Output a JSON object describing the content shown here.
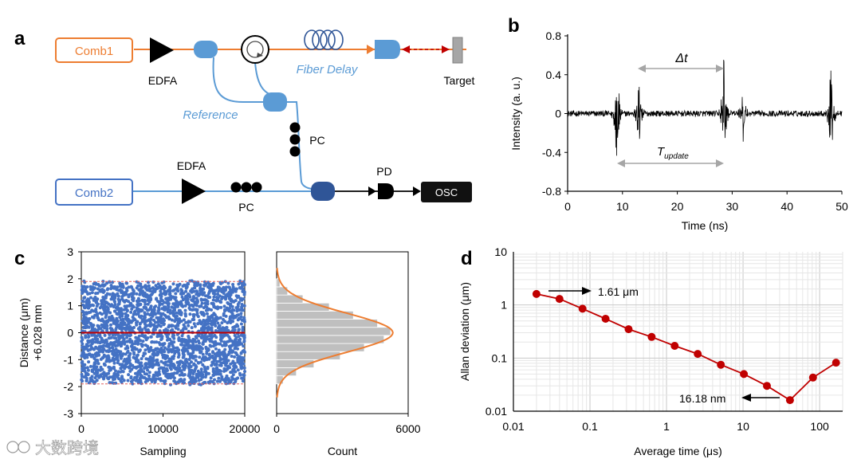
{
  "panels": {
    "a": {
      "label": "a",
      "comb1": "Comb1",
      "comb2": "Comb2",
      "edfa_top": "EDFA",
      "edfa_bottom": "EDFA",
      "fiber_delay": "Fiber Delay",
      "reference": "Reference",
      "target": "Target",
      "pc_right": "PC",
      "pc_bottom": "PC",
      "pd": "PD",
      "osc": "OSC"
    },
    "b": {
      "label": "b",
      "delta_t": "Δt",
      "t_update_main": "T",
      "t_update_sub": "update"
    },
    "c": {
      "label": "c"
    },
    "d": {
      "label": "d",
      "annot_top": "1.61 μm",
      "annot_bottom": "16.18 nm"
    }
  },
  "watermark": "大数跨境",
  "colors": {
    "comb1": "#ed7d31",
    "comb2": "#4472c4",
    "fiber_blue": "#5b9bd5",
    "allan_red": "#c00000",
    "scatter_blue": "#4472c4"
  },
  "chart_data": [
    {
      "id": "b",
      "type": "line",
      "xlabel": "Time (ns)",
      "ylabel": "Intensity (a. u.)",
      "xlim": [
        0,
        50
      ],
      "ylim": [
        -0.8,
        0.8
      ],
      "xticks": [
        "0",
        "10",
        "20",
        "30",
        "40",
        "50"
      ],
      "yticks": [
        "0.8",
        "0.4",
        "0",
        "-0.4",
        "-0.8"
      ],
      "pulses": [
        {
          "t": 9,
          "amp": 0.7
        },
        {
          "t": 13,
          "amp": 0.45
        },
        {
          "t": 28.5,
          "amp": 0.72
        },
        {
          "t": 32,
          "amp": 0.32
        },
        {
          "t": 48,
          "amp": 0.7
        }
      ],
      "noise_amp": 0.03
    },
    {
      "id": "c-scatter",
      "type": "scatter",
      "xlabel": "Sampling",
      "ylabel": "Distance (μm)",
      "ylabel2": "+6.028 mm",
      "xlim": [
        0,
        20000
      ],
      "ylim": [
        -3,
        3
      ],
      "xticks": [
        "0",
        "10000",
        "20000"
      ],
      "yticks": [
        "3",
        "2",
        "1",
        "0",
        "-1",
        "-2",
        "-3"
      ],
      "mean": 0,
      "bounds": [
        -1.9,
        1.9
      ]
    },
    {
      "id": "c-hist",
      "type": "bar",
      "xlabel": "Count",
      "xlim": [
        0,
        6000
      ],
      "xticks": [
        "0",
        "6000"
      ],
      "bin_centers": [
        -1.75,
        -1.45,
        -1.15,
        -0.85,
        -0.55,
        -0.25,
        0.05,
        0.35,
        0.65,
        0.95,
        1.25,
        1.55,
        1.85
      ],
      "counts": [
        300,
        900,
        1700,
        2900,
        4000,
        4900,
        5200,
        4600,
        3500,
        2400,
        1200,
        500,
        150
      ]
    },
    {
      "id": "d",
      "type": "line",
      "xlabel": "Average time (μs)",
      "ylabel": "Allan deviation (μm)",
      "log_x": true,
      "log_y": true,
      "xlim": [
        0.01,
        200
      ],
      "ylim": [
        0.01,
        10
      ],
      "xticks": [
        "0.01",
        "0.1",
        "1",
        "10",
        "100"
      ],
      "yticks": [
        "10",
        "1",
        "0.1",
        "0.01"
      ],
      "x": [
        0.02,
        0.04,
        0.08,
        0.16,
        0.32,
        0.64,
        1.28,
        2.56,
        5.12,
        10.24,
        20.48,
        40.96,
        81.92,
        163.84
      ],
      "y": [
        1.61,
        1.3,
        0.85,
        0.55,
        0.35,
        0.25,
        0.17,
        0.12,
        0.075,
        0.05,
        0.03,
        0.01618,
        0.043,
        0.082
      ]
    }
  ]
}
